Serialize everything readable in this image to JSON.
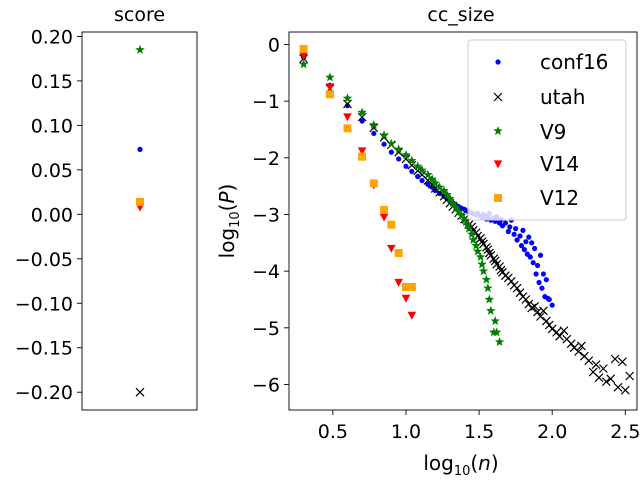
{
  "chart_data": [
    {
      "type": "scatter",
      "title": "score",
      "xlabel": "",
      "ylabel": "",
      "ylim": [
        -0.22,
        0.205
      ],
      "yticks": [
        0.2,
        0.15,
        0.1,
        0.05,
        0.0,
        -0.05,
        -0.1,
        -0.15,
        -0.2
      ],
      "ytick_labels": [
        "0.20",
        "0.15",
        "0.10",
        "0.05",
        "0.00",
        "−0.05",
        "−0.10",
        "−0.15",
        "−0.20"
      ],
      "series": [
        {
          "name": "conf16",
          "value": 0.073
        },
        {
          "name": "utah",
          "value": -0.2
        },
        {
          "name": "V9",
          "value": 0.185
        },
        {
          "name": "V14",
          "value": 0.008
        },
        {
          "name": "V12",
          "value": 0.014
        }
      ]
    },
    {
      "type": "scatter",
      "title": "cc_size",
      "xlabel": "log10(n)",
      "ylabel": "log10(P)",
      "xlim": [
        0.2,
        2.58
      ],
      "ylim": [
        -6.45,
        0.22
      ],
      "xticks": [
        0.5,
        1.0,
        1.5,
        2.0,
        2.5
      ],
      "xtick_labels": [
        "0.5",
        "1.0",
        "1.5",
        "2.0",
        "2.5"
      ],
      "yticks": [
        0,
        -1,
        -2,
        -3,
        -4,
        -5,
        -6
      ],
      "ytick_labels": [
        "0",
        "−1",
        "−2",
        "−3",
        "−4",
        "−5",
        "−6"
      ],
      "legend": "top-right",
      "series": [
        {
          "name": "conf16",
          "x": [
            0.3,
            0.48,
            0.6,
            0.7,
            0.78,
            0.85,
            0.9,
            0.95,
            1.0,
            1.04,
            1.08,
            1.11,
            1.15,
            1.18,
            1.2,
            1.23,
            1.26,
            1.28,
            1.3,
            1.32,
            1.34,
            1.36,
            1.38,
            1.4,
            1.42,
            1.43,
            1.45,
            1.46,
            1.48,
            1.49,
            1.51,
            1.52,
            1.53,
            1.55,
            1.56,
            1.57,
            1.58,
            1.6,
            1.61,
            1.62,
            1.64,
            1.65,
            1.66,
            1.68,
            1.7,
            1.71,
            1.72,
            1.74,
            1.75,
            1.76,
            1.78,
            1.79,
            1.8,
            1.81,
            1.82,
            1.83,
            1.84,
            1.85,
            1.86,
            1.87,
            1.88,
            1.89,
            1.9,
            1.91,
            1.92,
            1.93,
            1.94,
            1.95,
            1.96,
            1.97,
            1.98,
            2.0
          ],
          "y": [
            -0.23,
            -0.72,
            -1.08,
            -1.35,
            -1.57,
            -1.76,
            -1.9,
            -2.02,
            -2.15,
            -2.24,
            -2.33,
            -2.4,
            -2.47,
            -2.52,
            -2.58,
            -2.63,
            -2.68,
            -2.72,
            -2.76,
            -2.79,
            -2.83,
            -2.86,
            -2.89,
            -2.91,
            -2.94,
            -2.96,
            -2.97,
            -2.99,
            -3.01,
            -2.98,
            -3.03,
            -3.05,
            -3.0,
            -3.08,
            -3.03,
            -2.98,
            -3.1,
            -3.06,
            -3.12,
            -3.04,
            -3.15,
            -3.09,
            -3.2,
            -3.15,
            -3.3,
            -3.22,
            -3.1,
            -3.35,
            -3.25,
            -3.45,
            -3.38,
            -3.55,
            -3.28,
            -3.62,
            -3.48,
            -3.7,
            -3.4,
            -3.75,
            -3.5,
            -3.85,
            -3.6,
            -4.05,
            -3.9,
            -4.2,
            -3.72,
            -4.3,
            -4.05,
            -4.45,
            -4.15,
            -4.48,
            -4.5,
            -4.6
          ]
        },
        {
          "name": "utah",
          "x": [
            0.3,
            0.48,
            0.6,
            0.7,
            0.78,
            0.85,
            0.9,
            0.95,
            1.0,
            1.04,
            1.08,
            1.11,
            1.15,
            1.18,
            1.2,
            1.23,
            1.26,
            1.28,
            1.3,
            1.32,
            1.34,
            1.36,
            1.38,
            1.4,
            1.42,
            1.43,
            1.45,
            1.46,
            1.48,
            1.49,
            1.51,
            1.52,
            1.53,
            1.55,
            1.56,
            1.57,
            1.58,
            1.6,
            1.61,
            1.62,
            1.64,
            1.65,
            1.66,
            1.68,
            1.7,
            1.72,
            1.74,
            1.76,
            1.78,
            1.8,
            1.82,
            1.84,
            1.86,
            1.88,
            1.9,
            1.92,
            1.94,
            1.96,
            1.98,
            2.0,
            2.03,
            2.05,
            2.08,
            2.1,
            2.13,
            2.15,
            2.18,
            2.2,
            2.22,
            2.25,
            2.28,
            2.3,
            2.32,
            2.35,
            2.37,
            2.4,
            2.43,
            2.45,
            2.48,
            2.5,
            2.53
          ],
          "y": [
            -0.25,
            -0.78,
            -1.05,
            -1.28,
            -1.47,
            -1.64,
            -1.77,
            -1.9,
            -2.02,
            -2.13,
            -2.23,
            -2.3,
            -2.4,
            -2.47,
            -2.54,
            -2.61,
            -2.68,
            -2.74,
            -2.8,
            -2.86,
            -2.91,
            -2.97,
            -3.02,
            -3.08,
            -3.12,
            -3.18,
            -3.22,
            -3.28,
            -3.32,
            -3.38,
            -3.42,
            -3.48,
            -3.52,
            -3.58,
            -3.62,
            -3.68,
            -3.72,
            -3.78,
            -3.82,
            -3.88,
            -3.92,
            -3.98,
            -4.02,
            -4.08,
            -4.12,
            -4.18,
            -4.25,
            -4.3,
            -4.38,
            -4.45,
            -4.5,
            -4.58,
            -4.65,
            -4.62,
            -4.72,
            -4.8,
            -4.7,
            -4.88,
            -4.95,
            -5.02,
            -5.08,
            -5.15,
            -5.05,
            -5.2,
            -5.28,
            -5.35,
            -5.42,
            -5.32,
            -5.5,
            -5.58,
            -5.78,
            -5.65,
            -5.88,
            -5.72,
            -5.95,
            -5.9,
            -5.55,
            -6.05,
            -5.6,
            -6.1,
            -5.85
          ]
        },
        {
          "name": "V9",
          "x": [
            0.3,
            0.48,
            0.6,
            0.7,
            0.78,
            0.85,
            0.9,
            0.95,
            1.0,
            1.04,
            1.08,
            1.11,
            1.15,
            1.18,
            1.2,
            1.23,
            1.26,
            1.28,
            1.3,
            1.32,
            1.34,
            1.36,
            1.38,
            1.4,
            1.42,
            1.43,
            1.45,
            1.46,
            1.48,
            1.49,
            1.51,
            1.52,
            1.53,
            1.55,
            1.56,
            1.57,
            1.58,
            1.6,
            1.61,
            1.62,
            1.64
          ],
          "y": [
            -0.35,
            -0.58,
            -0.95,
            -1.2,
            -1.42,
            -1.6,
            -1.75,
            -1.85,
            -1.95,
            -2.05,
            -2.15,
            -2.22,
            -2.3,
            -2.38,
            -2.45,
            -2.52,
            -2.58,
            -2.65,
            -2.72,
            -2.8,
            -2.88,
            -2.95,
            -3.02,
            -3.1,
            -3.18,
            -3.25,
            -3.35,
            -3.45,
            -3.55,
            -3.65,
            -3.75,
            -3.88,
            -4.0,
            -4.15,
            -4.3,
            -4.5,
            -4.7,
            -5.08,
            -4.88,
            -5.08,
            -5.25
          ]
        },
        {
          "name": "V14",
          "x": [
            0.3,
            0.48,
            0.6,
            0.7,
            0.78,
            0.85,
            0.9,
            0.95,
            1.0,
            1.04
          ],
          "y": [
            -0.2,
            -0.75,
            -1.28,
            -1.88,
            -2.48,
            -3.05,
            -3.6,
            -4.2,
            -4.48,
            -4.78
          ]
        },
        {
          "name": "V12",
          "x": [
            0.3,
            0.48,
            0.6,
            0.7,
            0.78,
            0.85,
            0.9,
            0.95,
            1.0,
            1.04
          ],
          "y": [
            -0.08,
            -0.88,
            -1.48,
            -1.98,
            -2.45,
            -2.92,
            -3.18,
            -3.68,
            -4.28,
            -4.28
          ]
        }
      ]
    }
  ],
  "colors": {
    "conf16": "#0000ff",
    "utah": "#000000",
    "V9": "#008000",
    "V14": "#ff0000",
    "V12": "#ffa500"
  },
  "markers": {
    "conf16": "dot",
    "utah": "x",
    "V9": "star",
    "V14": "triangle-down",
    "V12": "square"
  }
}
